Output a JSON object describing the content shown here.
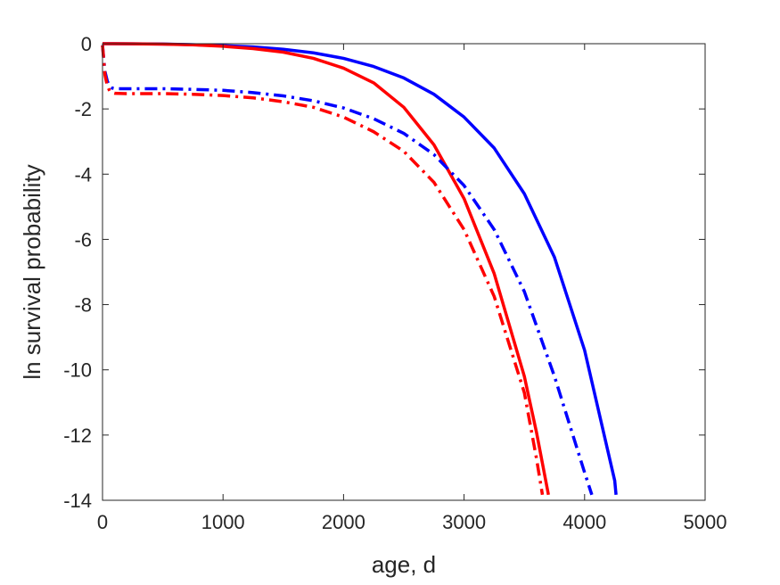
{
  "chart_data": {
    "type": "line",
    "title": "",
    "xlabel": "age, d",
    "ylabel": "ln survival probability",
    "xlim": [
      0,
      5000
    ],
    "ylim": [
      -14,
      0
    ],
    "xticks": [
      0,
      1000,
      2000,
      3000,
      4000,
      5000
    ],
    "yticks": [
      0,
      -2,
      -4,
      -6,
      -8,
      -10,
      -12,
      -14
    ],
    "grid": false,
    "legend": "none",
    "series": [
      {
        "color": "#0000ff",
        "style": "solid",
        "x": [
          0,
          250,
          500,
          750,
          1000,
          1250,
          1500,
          1750,
          2000,
          2250,
          2500,
          2750,
          3000,
          3250,
          3500,
          3750,
          4000,
          4250,
          4261
        ],
        "y": [
          0,
          -0.003,
          -0.01,
          -0.03,
          -0.06,
          -0.1,
          -0.17,
          -0.28,
          -0.45,
          -0.7,
          -1.05,
          -1.55,
          -2.25,
          -3.2,
          -4.6,
          -6.55,
          -9.4,
          -13.4,
          -13.83
        ]
      },
      {
        "color": "#ff0000",
        "style": "solid",
        "x": [
          0,
          250,
          500,
          750,
          1000,
          1250,
          1500,
          1750,
          2000,
          2250,
          2500,
          2750,
          3000,
          3250,
          3500,
          3600,
          3700
        ],
        "y": [
          0,
          -0.004,
          -0.012,
          -0.035,
          -0.08,
          -0.15,
          -0.26,
          -0.45,
          -0.75,
          -1.2,
          -1.95,
          -3.1,
          -4.75,
          -7.05,
          -10.2,
          -11.9,
          -13.83
        ]
      },
      {
        "color": "#0000ff",
        "style": "dashdot",
        "x": [
          0,
          10,
          20,
          40,
          60,
          80,
          100,
          200,
          500,
          750,
          1000,
          1250,
          1500,
          1750,
          2000,
          2250,
          2500,
          2750,
          3000,
          3250,
          3500,
          3750,
          4000,
          4060
        ],
        "y": [
          -0.05,
          -0.45,
          -0.85,
          -1.15,
          -1.3,
          -1.36,
          -1.38,
          -1.38,
          -1.38,
          -1.4,
          -1.43,
          -1.5,
          -1.6,
          -1.75,
          -1.97,
          -2.3,
          -2.75,
          -3.4,
          -4.35,
          -5.7,
          -7.6,
          -10.2,
          -13.15,
          -13.83
        ]
      },
      {
        "color": "#ff0000",
        "style": "dashdot",
        "x": [
          0,
          10,
          20,
          40,
          60,
          80,
          100,
          200,
          500,
          750,
          1000,
          1250,
          1500,
          1750,
          2000,
          2250,
          2500,
          2750,
          3000,
          3250,
          3500,
          3600,
          3650
        ],
        "y": [
          -0.05,
          -0.5,
          -0.95,
          -1.3,
          -1.45,
          -1.5,
          -1.52,
          -1.53,
          -1.53,
          -1.55,
          -1.59,
          -1.66,
          -1.78,
          -1.95,
          -2.25,
          -2.7,
          -3.3,
          -4.25,
          -5.7,
          -7.75,
          -10.7,
          -12.7,
          -13.83
        ]
      }
    ]
  }
}
